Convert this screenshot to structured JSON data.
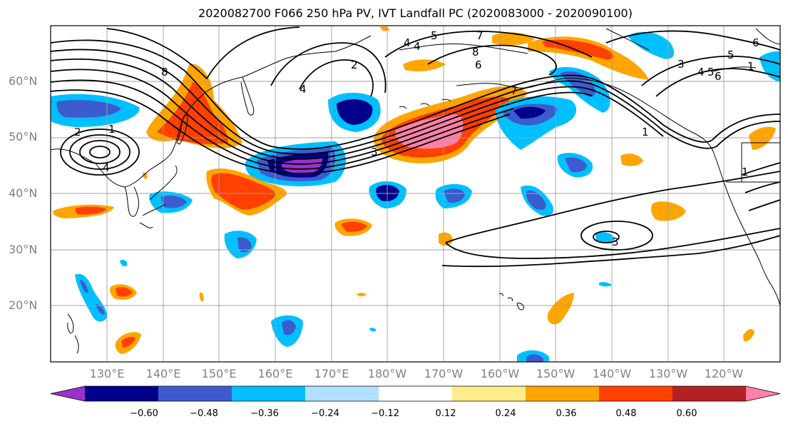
{
  "title": "2020082700 F066 250 hPa PV, IVT Landfall PC (2020083000 - 2020090100)",
  "map": {
    "lat_labels": [
      "60°N",
      "50°N",
      "40°N",
      "30°N",
      "20°N"
    ],
    "lon_labels": [
      "130°E",
      "140°E",
      "150°E",
      "160°E",
      "170°E",
      "180°W",
      "170°W",
      "160°W",
      "150°W",
      "140°W",
      "130°W",
      "120°W"
    ],
    "contour_labels": [
      "4",
      "5",
      "7",
      "8",
      "6",
      "4",
      "6",
      "1",
      "5",
      "3",
      "4",
      "5",
      "6",
      "1",
      "2",
      "4",
      "2",
      "3",
      "1",
      "1",
      "7",
      "8",
      "4",
      "3"
    ],
    "colors": {
      "land_outline": "#000000",
      "grid": "#a0a0a0",
      "contour": "#000000",
      "pos_strong": "#ff80a8",
      "pos_mid": "#ff4000",
      "pos_weak": "#ffa500",
      "pos_faint": "#ffec8b",
      "neg_strong": "#9932cc",
      "neg_mid": "#00008b",
      "neg_weak": "#3b5bcf",
      "neg_light": "#00bfff",
      "neg_faint": "#b0e2ff"
    }
  },
  "colorbar": {
    "tick_labels": [
      "−0.60",
      "−0.48",
      "−0.36",
      "−0.24",
      "−0.12",
      "0.12",
      "0.24",
      "0.36",
      "0.48",
      "0.60"
    ],
    "bins": [
      {
        "color": "#9932cc"
      },
      {
        "color": "#00008b"
      },
      {
        "color": "#3b5bcf"
      },
      {
        "color": "#00bfff"
      },
      {
        "color": "#b0e2ff"
      },
      {
        "color": "#ffffff"
      },
      {
        "color": "#ffec8b"
      },
      {
        "color": "#ffa500"
      },
      {
        "color": "#ff4000"
      },
      {
        "color": "#b22222"
      },
      {
        "color": "#ff80a8"
      }
    ]
  }
}
